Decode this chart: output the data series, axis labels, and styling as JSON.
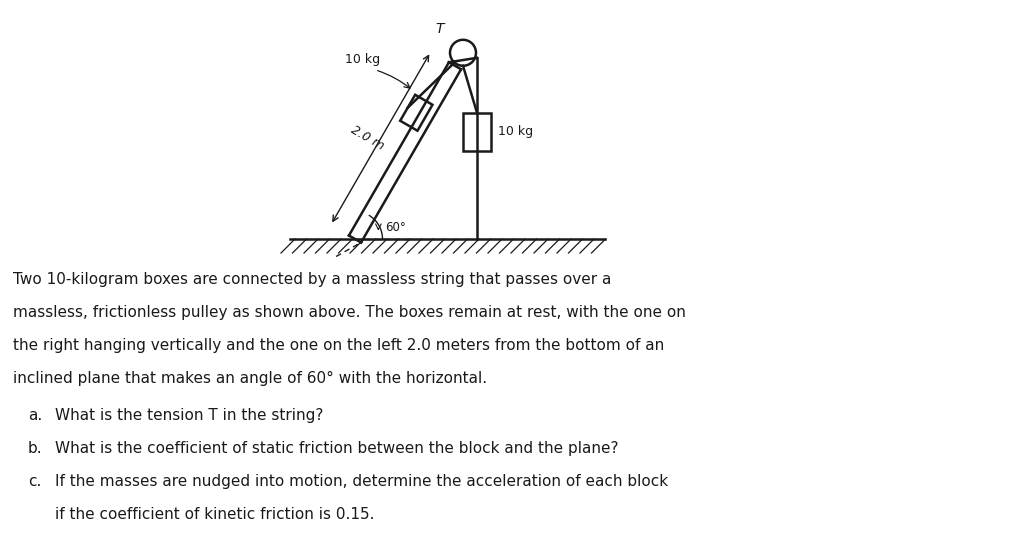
{
  "bg_color": "#ffffff",
  "line_color": "#1a1a1a",
  "text_color": "#1a1a1a",
  "label_left_mass": "10 kg",
  "label_right_mass": "10 kg",
  "label_length": "2.0 m",
  "label_angle": "60°",
  "label_T": "T",
  "lines_para": [
    "Two 10-kilogram boxes are connected by a massless string that passes over a",
    "massless, frictionless pulley as shown above. The boxes remain at rest, with the one on",
    "the right hanging vertically and the one on the left 2.0 meters from the bottom of an",
    "inclined plane that makes an angle of 60° with the horizontal."
  ],
  "item_a": "What is the tension T in the string?",
  "item_b": "What is the coefficient of static friction between the block and the plane?",
  "item_c1": "If the masses are nudged into motion, determine the acceleration of each block",
  "item_c2": "if the coefficient of kinetic friction is 0.15."
}
